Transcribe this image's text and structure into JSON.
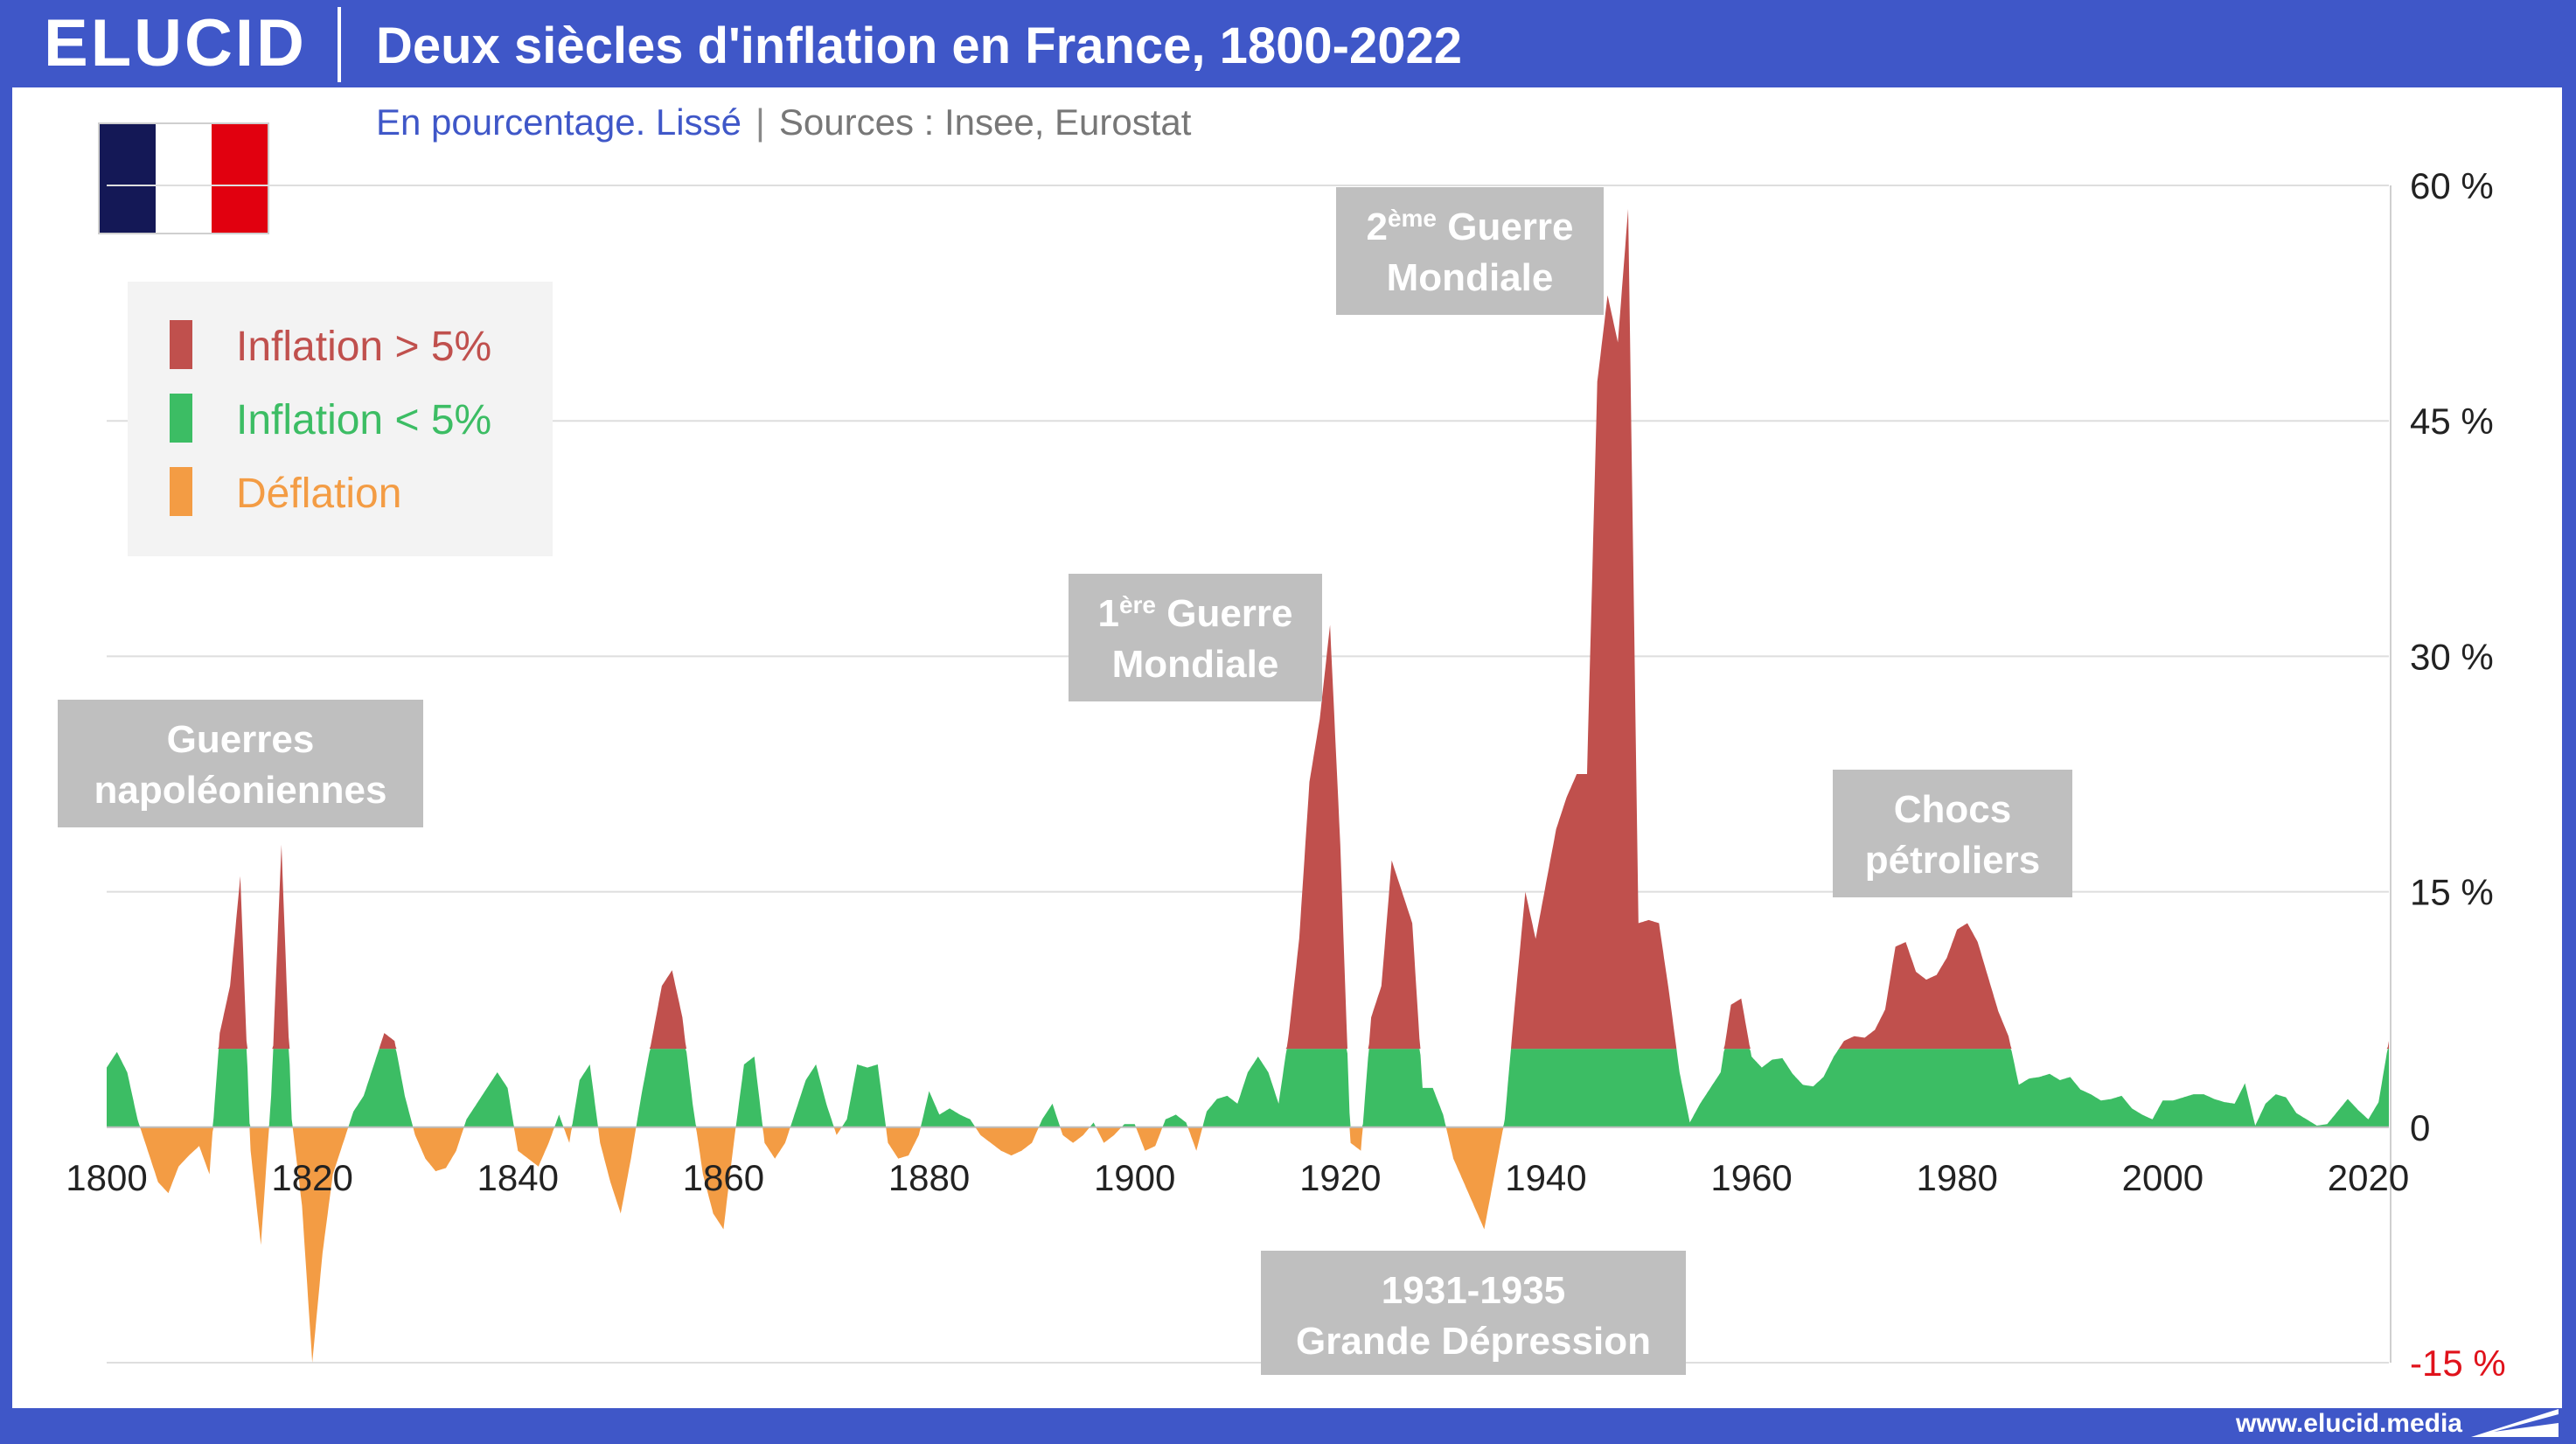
{
  "header": {
    "logo": "ELUCID",
    "title": "Deux siècles d'inflation en France, 1800-2022"
  },
  "subtitle": {
    "main": "En pourcentage. Lissé",
    "separator": "|",
    "sources": "Sources : Insee, Eurostat"
  },
  "footer": {
    "url": "www.elucid.media"
  },
  "colors": {
    "high": "#c0504d",
    "low": "#3cbd64",
    "deflation": "#f39c44",
    "brand": "#3f57c8",
    "annotation_bg": "#bfbfbf"
  },
  "chart_data": {
    "type": "area",
    "title": "Deux siècles d'inflation en France, 1800-2022",
    "xlim": [
      1800,
      2022
    ],
    "ylim": [
      -15,
      60
    ],
    "x_ticks": [
      1800,
      1820,
      1840,
      1860,
      1880,
      1900,
      1920,
      1940,
      1960,
      1980,
      2000,
      2020
    ],
    "y_ticks": [
      60,
      45,
      30,
      15,
      0,
      -15
    ],
    "y_tick_labels": [
      "60 %",
      "45 %",
      "30 %",
      "15 %",
      "0",
      "-15 %"
    ],
    "threshold": 5,
    "grid": true,
    "legend_position": "top-left",
    "series": [
      {
        "name": "Inflation > 5%",
        "color": "#c0504d"
      },
      {
        "name": "Inflation < 5%",
        "color": "#3cbd64"
      },
      {
        "name": "Déflation",
        "color": "#f39c44"
      }
    ],
    "annotations": [
      {
        "lines": [
          "Guerres",
          "napoléoniennes"
        ],
        "position": "upper-left"
      },
      {
        "lines": [
          "1ère Guerre",
          "Mondiale"
        ],
        "sup": "ère",
        "position": "upper-center"
      },
      {
        "lines": [
          "2ème Guerre",
          "Mondiale"
        ],
        "sup": "ème",
        "position": "top-center"
      },
      {
        "lines": [
          "Chocs",
          "pétroliers"
        ],
        "position": "middle-right"
      },
      {
        "lines": [
          "1931-1935",
          "Grande Dépression"
        ],
        "position": "bottom-center"
      }
    ],
    "points": [
      [
        1800,
        3.8
      ],
      [
        1801,
        4.8
      ],
      [
        1802,
        3.5
      ],
      [
        1803,
        0.5
      ],
      [
        1804,
        -1.5
      ],
      [
        1805,
        -3.5
      ],
      [
        1806,
        -4.2
      ],
      [
        1807,
        -2.5
      ],
      [
        1808,
        -1.8
      ],
      [
        1809,
        -1.2
      ],
      [
        1810,
        -3.0
      ],
      [
        1811,
        6.0
      ],
      [
        1812,
        9.0
      ],
      [
        1813,
        16.0
      ],
      [
        1814,
        -1.5
      ],
      [
        1815,
        -7.5
      ],
      [
        1816,
        2.0
      ],
      [
        1817,
        18.0
      ],
      [
        1818,
        0.5
      ],
      [
        1819,
        -5.0
      ],
      [
        1820,
        -15.0
      ],
      [
        1821,
        -8.0
      ],
      [
        1822,
        -3.0
      ],
      [
        1823,
        -1.0
      ],
      [
        1824,
        1.0
      ],
      [
        1825,
        2.0
      ],
      [
        1826,
        4.0
      ],
      [
        1827,
        6.0
      ],
      [
        1828,
        5.5
      ],
      [
        1829,
        2.0
      ],
      [
        1830,
        -0.5
      ],
      [
        1831,
        -2.0
      ],
      [
        1832,
        -2.8
      ],
      [
        1833,
        -2.6
      ],
      [
        1834,
        -1.5
      ],
      [
        1835,
        0.5
      ],
      [
        1836,
        1.5
      ],
      [
        1837,
        2.5
      ],
      [
        1838,
        3.5
      ],
      [
        1839,
        2.5
      ],
      [
        1840,
        -1.5
      ],
      [
        1841,
        -2.0
      ],
      [
        1842,
        -2.5
      ],
      [
        1843,
        -1.0
      ],
      [
        1844,
        0.8
      ],
      [
        1845,
        -1.0
      ],
      [
        1846,
        3.0
      ],
      [
        1847,
        4.0
      ],
      [
        1848,
        -1.0
      ],
      [
        1849,
        -3.5
      ],
      [
        1850,
        -5.5
      ],
      [
        1851,
        -2.0
      ],
      [
        1852,
        2.0
      ],
      [
        1853,
        5.5
      ],
      [
        1854,
        9.0
      ],
      [
        1855,
        10.0
      ],
      [
        1856,
        7.0
      ],
      [
        1857,
        1.5
      ],
      [
        1858,
        -3.0
      ],
      [
        1859,
        -5.5
      ],
      [
        1860,
        -6.5
      ],
      [
        1861,
        -1.0
      ],
      [
        1862,
        4.0
      ],
      [
        1863,
        4.5
      ],
      [
        1864,
        -1.0
      ],
      [
        1865,
        -2.0
      ],
      [
        1866,
        -1.0
      ],
      [
        1867,
        1.0
      ],
      [
        1868,
        3.0
      ],
      [
        1869,
        4.0
      ],
      [
        1870,
        1.5
      ],
      [
        1871,
        -0.5
      ],
      [
        1872,
        0.5
      ],
      [
        1873,
        4.0
      ],
      [
        1874,
        3.8
      ],
      [
        1875,
        4.0
      ],
      [
        1876,
        -1.0
      ],
      [
        1877,
        -2.0
      ],
      [
        1878,
        -1.8
      ],
      [
        1879,
        -0.5
      ],
      [
        1880,
        2.3
      ],
      [
        1881,
        0.8
      ],
      [
        1882,
        1.2
      ],
      [
        1883,
        0.8
      ],
      [
        1884,
        0.5
      ],
      [
        1885,
        -0.5
      ],
      [
        1886,
        -1.0
      ],
      [
        1887,
        -1.5
      ],
      [
        1888,
        -1.8
      ],
      [
        1889,
        -1.5
      ],
      [
        1890,
        -1.0
      ],
      [
        1891,
        0.5
      ],
      [
        1892,
        1.5
      ],
      [
        1893,
        -0.5
      ],
      [
        1894,
        -1.0
      ],
      [
        1895,
        -0.5
      ],
      [
        1896,
        0.3
      ],
      [
        1897,
        -1.0
      ],
      [
        1898,
        -0.5
      ],
      [
        1899,
        0.2
      ],
      [
        1900,
        0.2
      ],
      [
        1901,
        -1.5
      ],
      [
        1902,
        -1.2
      ],
      [
        1903,
        0.5
      ],
      [
        1904,
        0.8
      ],
      [
        1905,
        0.3
      ],
      [
        1906,
        -1.5
      ],
      [
        1907,
        1.0
      ],
      [
        1908,
        1.8
      ],
      [
        1909,
        2.0
      ],
      [
        1910,
        1.5
      ],
      [
        1911,
        3.5
      ],
      [
        1912,
        4.5
      ],
      [
        1913,
        3.5
      ],
      [
        1914,
        1.5
      ],
      [
        1915,
        6.0
      ],
      [
        1916,
        12.0
      ],
      [
        1917,
        22.0
      ],
      [
        1918,
        26.0
      ],
      [
        1919,
        32.0
      ],
      [
        1920,
        18.0
      ],
      [
        1921,
        -1.0
      ],
      [
        1922,
        -1.5
      ],
      [
        1923,
        7.0
      ],
      [
        1924,
        9.0
      ],
      [
        1925,
        17.0
      ],
      [
        1926,
        15.0
      ],
      [
        1927,
        13.0
      ],
      [
        1928,
        2.5
      ],
      [
        1929,
        2.5
      ],
      [
        1930,
        0.8
      ],
      [
        1931,
        -2.0
      ],
      [
        1932,
        -3.5
      ],
      [
        1933,
        -5.0
      ],
      [
        1934,
        -6.5
      ],
      [
        1935,
        -3.0
      ],
      [
        1936,
        0.5
      ],
      [
        1937,
        8.0
      ],
      [
        1938,
        15.0
      ],
      [
        1939,
        12.0
      ],
      [
        1940,
        15.5
      ],
      [
        1941,
        19.0
      ],
      [
        1942,
        21.0
      ],
      [
        1943,
        22.5
      ],
      [
        1944,
        22.5
      ],
      [
        1945,
        47.5
      ],
      [
        1946,
        53.0
      ],
      [
        1947,
        50.0
      ],
      [
        1948,
        58.5
      ],
      [
        1949,
        13.0
      ],
      [
        1950,
        13.2
      ],
      [
        1951,
        13.0
      ],
      [
        1952,
        8.5
      ],
      [
        1953,
        3.5
      ],
      [
        1954,
        0.3
      ],
      [
        1955,
        1.5
      ],
      [
        1956,
        2.5
      ],
      [
        1957,
        3.5
      ],
      [
        1958,
        7.8
      ],
      [
        1959,
        8.2
      ],
      [
        1960,
        4.5
      ],
      [
        1961,
        3.8
      ],
      [
        1962,
        4.3
      ],
      [
        1963,
        4.4
      ],
      [
        1964,
        3.4
      ],
      [
        1965,
        2.7
      ],
      [
        1966,
        2.6
      ],
      [
        1967,
        3.2
      ],
      [
        1968,
        4.5
      ],
      [
        1969,
        5.5
      ],
      [
        1970,
        5.8
      ],
      [
        1971,
        5.7
      ],
      [
        1972,
        6.2
      ],
      [
        1973,
        7.5
      ],
      [
        1974,
        11.5
      ],
      [
        1975,
        11.8
      ],
      [
        1976,
        9.9
      ],
      [
        1977,
        9.4
      ],
      [
        1978,
        9.7
      ],
      [
        1979,
        10.8
      ],
      [
        1980,
        12.6
      ],
      [
        1981,
        13.0
      ],
      [
        1982,
        11.8
      ],
      [
        1983,
        9.6
      ],
      [
        1984,
        7.4
      ],
      [
        1985,
        5.8
      ],
      [
        1986,
        2.7
      ],
      [
        1987,
        3.1
      ],
      [
        1988,
        3.2
      ],
      [
        1989,
        3.4
      ],
      [
        1990,
        3.0
      ],
      [
        1991,
        3.2
      ],
      [
        1992,
        2.4
      ],
      [
        1993,
        2.1
      ],
      [
        1994,
        1.7
      ],
      [
        1995,
        1.8
      ],
      [
        1996,
        2.0
      ],
      [
        1997,
        1.2
      ],
      [
        1998,
        0.8
      ],
      [
        1999,
        0.5
      ],
      [
        2000,
        1.7
      ],
      [
        2001,
        1.7
      ],
      [
        2002,
        1.9
      ],
      [
        2003,
        2.1
      ],
      [
        2004,
        2.1
      ],
      [
        2005,
        1.8
      ],
      [
        2006,
        1.6
      ],
      [
        2007,
        1.5
      ],
      [
        2008,
        2.8
      ],
      [
        2009,
        0.1
      ],
      [
        2010,
        1.5
      ],
      [
        2011,
        2.1
      ],
      [
        2012,
        1.9
      ],
      [
        2013,
        0.9
      ],
      [
        2014,
        0.5
      ],
      [
        2015,
        0.1
      ],
      [
        2016,
        0.2
      ],
      [
        2017,
        1.0
      ],
      [
        2018,
        1.8
      ],
      [
        2019,
        1.1
      ],
      [
        2020,
        0.5
      ],
      [
        2021,
        1.6
      ],
      [
        2022,
        5.5
      ]
    ]
  }
}
